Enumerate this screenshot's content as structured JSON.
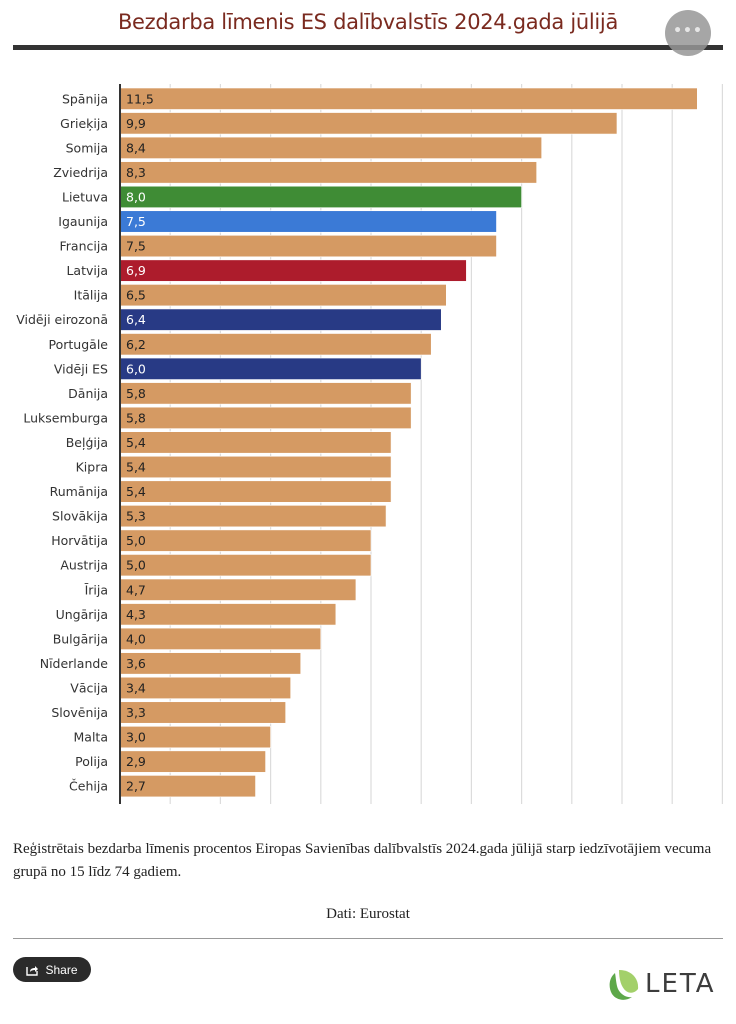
{
  "header": {
    "title": "Bezdarba līmenis ES dalībvalstīs 2024.gada jūlijā",
    "menu_icon": "more-horizontal-icon"
  },
  "chart_data": {
    "type": "bar",
    "orientation": "horizontal",
    "title": "Bezdarba līmenis ES dalībvalstīs 2024.gada jūlijā",
    "xlabel": "",
    "ylabel": "",
    "xlim": [
      0,
      12
    ],
    "grid": true,
    "decimal_separator": ",",
    "categories": [
      "Spānija",
      "Grieķija",
      "Somija",
      "Zviedrija",
      "Lietuva",
      "Igaunija",
      "Francija",
      "Latvija",
      "Itālija",
      "Vidēji eirozonā",
      "Portugāle",
      "Vidēji ES",
      "Dānija",
      "Luksemburga",
      "Beļģija",
      "Kipra",
      "Rumānija",
      "Slovākija",
      "Horvātija",
      "Austrija",
      "Īrija",
      "Ungārija",
      "Bulgārija",
      "Nīderlande",
      "Vācija",
      "Slovēnija",
      "Malta",
      "Polija",
      "Čehija"
    ],
    "values": [
      11.5,
      9.9,
      8.4,
      8.3,
      8.0,
      7.5,
      7.5,
      6.9,
      6.5,
      6.4,
      6.2,
      6.0,
      5.8,
      5.8,
      5.4,
      5.4,
      5.4,
      5.3,
      5.0,
      5.0,
      4.7,
      4.3,
      4.0,
      3.6,
      3.4,
      3.3,
      3.0,
      2.9,
      2.7
    ],
    "value_labels": [
      "11,5",
      "9,9",
      "8,4",
      "8,3",
      "8,0",
      "7,5",
      "7,5",
      "6,9",
      "6,5",
      "6,4",
      "6,2",
      "6,0",
      "5,8",
      "5,8",
      "5,4",
      "5,4",
      "5,4",
      "5,3",
      "5,0",
      "5,0",
      "4,7",
      "4,3",
      "4,0",
      "3,6",
      "3,4",
      "3,3",
      "3,0",
      "2,9",
      "2,7"
    ],
    "colors": {
      "default": "#d59a63",
      "Lietuva": "#3f8c35",
      "Igaunija": "#3b7ad6",
      "Latvija": "#ad1c2c",
      "Vidēji eirozonā": "#283a85",
      "Vidēji ES": "#283a85"
    },
    "highlight_label_color": "#ffffff",
    "default_label_color": "#222222"
  },
  "footer": {
    "caption": "Reģistrētais bezdarba līmenis procentos Eiropas Savienības dalībvalstīs 2024.gada jūlijā starp iedzīvotājiem vecuma grupā no 15 līdz 74 gadiem.",
    "source": "Dati: Eurostat",
    "share_label": "Share",
    "share_icon": "share-icon",
    "logo_text": "LETA",
    "logo_icon": "leta-logo-icon"
  }
}
